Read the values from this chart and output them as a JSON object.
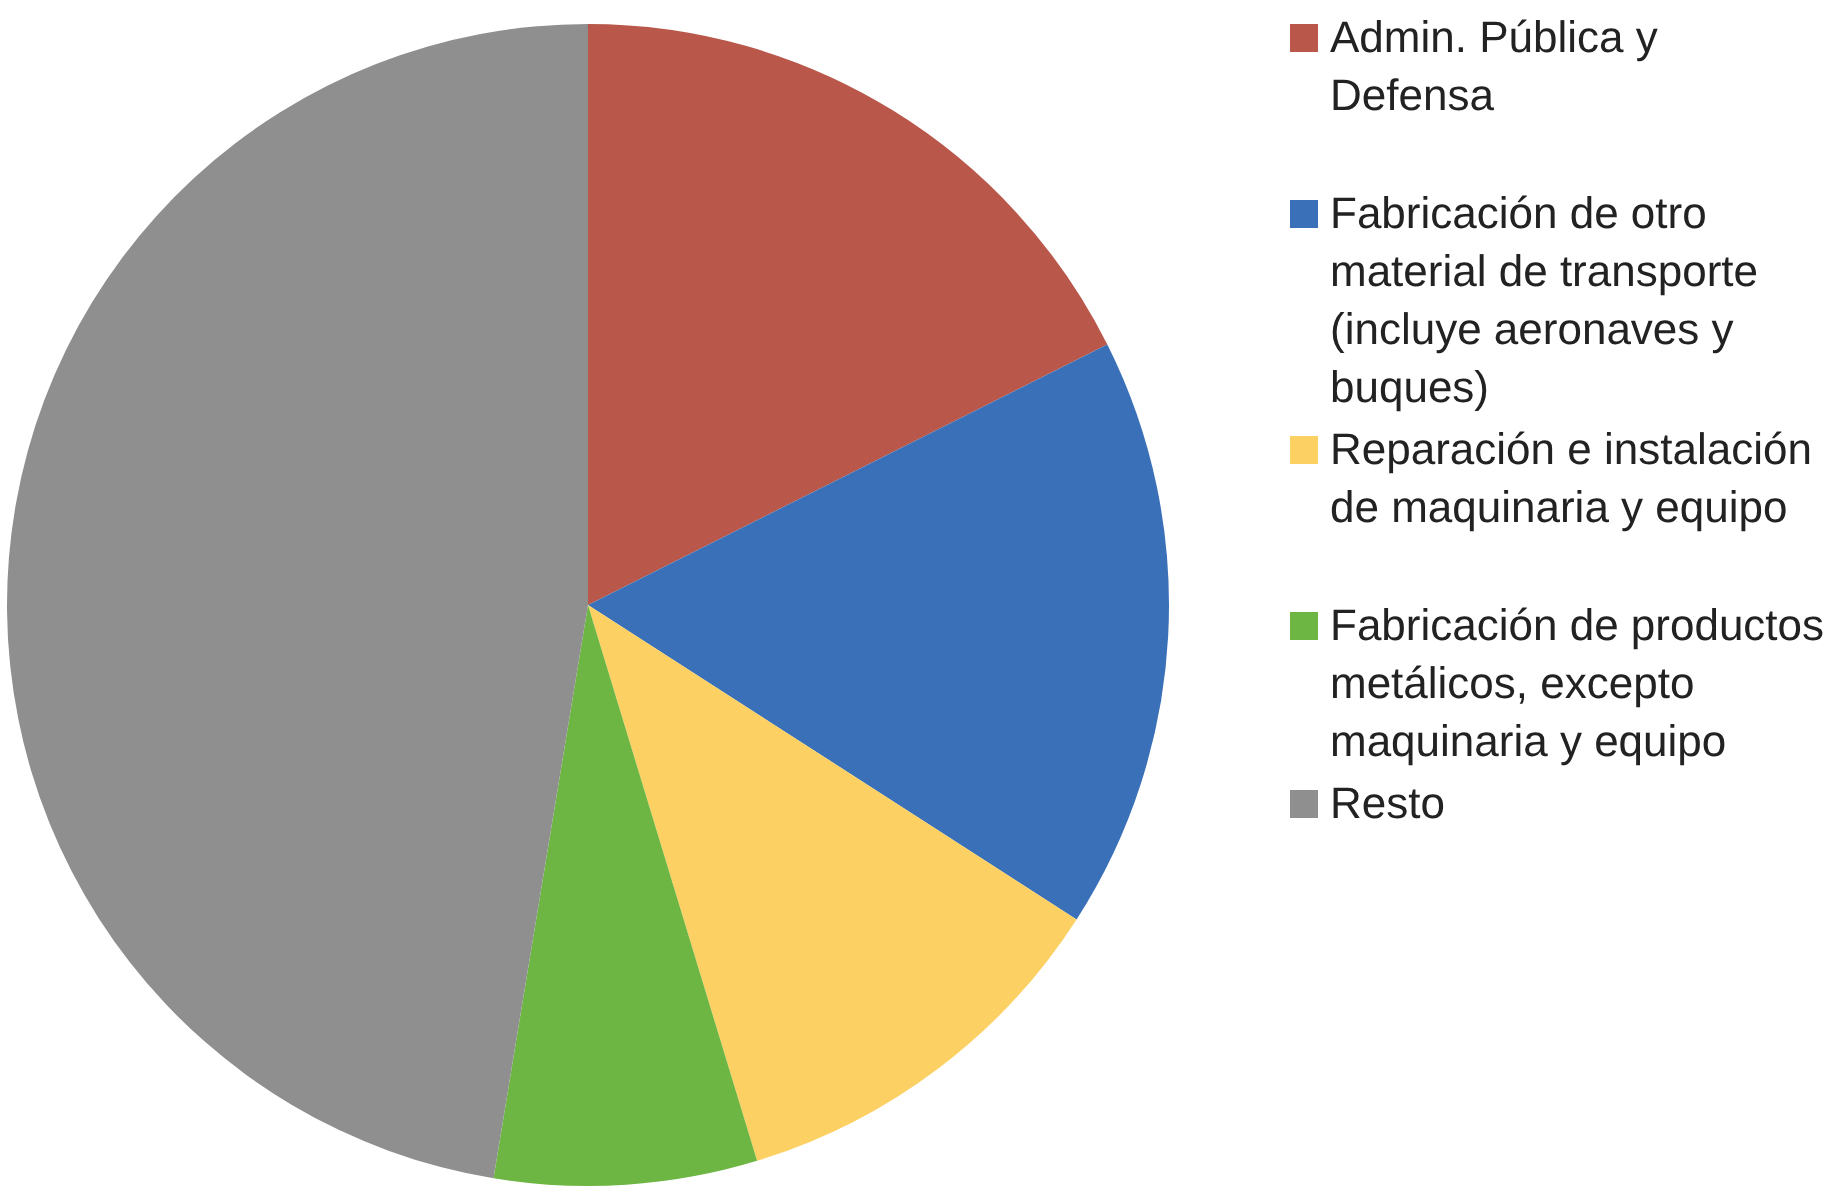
{
  "chart_data": {
    "type": "pie",
    "categories": [
      "Admin. Pública y Defensa",
      "Fabricación de otro material de transporte (incluye aeronaves y buques)",
      "Reparación e instalación de maquinaria y equipo",
      "Fabricación de productos metálicos, excepto maquinaria y equipo",
      "Resto"
    ],
    "values": [
      17.6,
      16.5,
      11.2,
      7.3,
      47.4
    ],
    "colors": [
      "#b9584a",
      "#3a70b8",
      "#fcd062",
      "#6db643",
      "#8f8f8f"
    ],
    "legend": "right"
  }
}
